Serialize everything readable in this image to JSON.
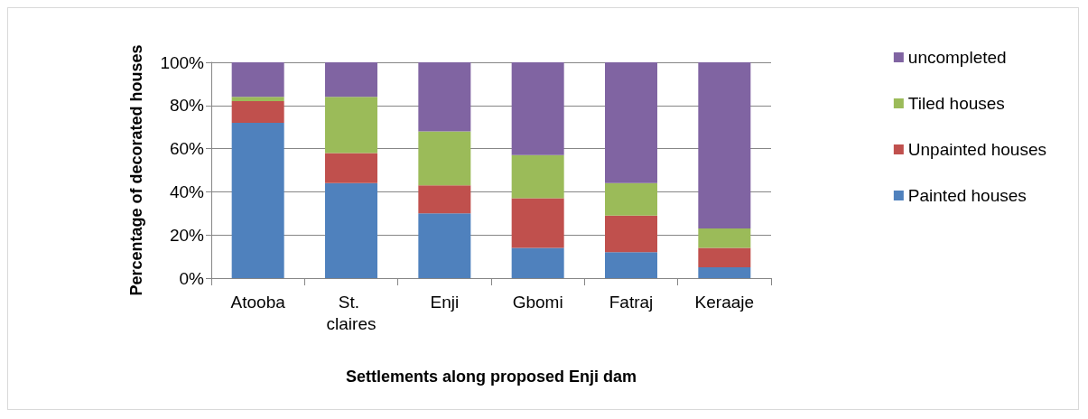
{
  "chart_data": {
    "type": "bar",
    "stacked": true,
    "xlabel": "Settlements along proposed Enji dam",
    "ylabel": "Percentage of decorated houses",
    "categories": [
      "Atooba",
      "St. claires",
      "Enji",
      "Gbomi",
      "Fatraj",
      "Keraaje"
    ],
    "series": [
      {
        "name": "Painted houses",
        "color": "#4f81bd",
        "values": [
          72,
          44,
          30,
          14,
          12,
          5
        ]
      },
      {
        "name": "Unpainted houses",
        "color": "#c0504d",
        "values": [
          10,
          14,
          13,
          23,
          17,
          9
        ]
      },
      {
        "name": "Tiled houses",
        "color": "#9bbb59",
        "values": [
          2,
          26,
          25,
          20,
          15,
          9
        ]
      },
      {
        "name": "uncompleted",
        "color": "#8064a2",
        "values": [
          16,
          16,
          32,
          43,
          56,
          77
        ]
      }
    ],
    "ylim": [
      0,
      100
    ],
    "yticks": [
      {
        "value": 0,
        "label": "0%"
      },
      {
        "value": 20,
        "label": "20%"
      },
      {
        "value": 40,
        "label": "40%"
      },
      {
        "value": 60,
        "label": "60%"
      },
      {
        "value": 80,
        "label": "80%"
      },
      {
        "value": 100,
        "label": "100%"
      }
    ],
    "grid": "y",
    "legend": "right"
  }
}
